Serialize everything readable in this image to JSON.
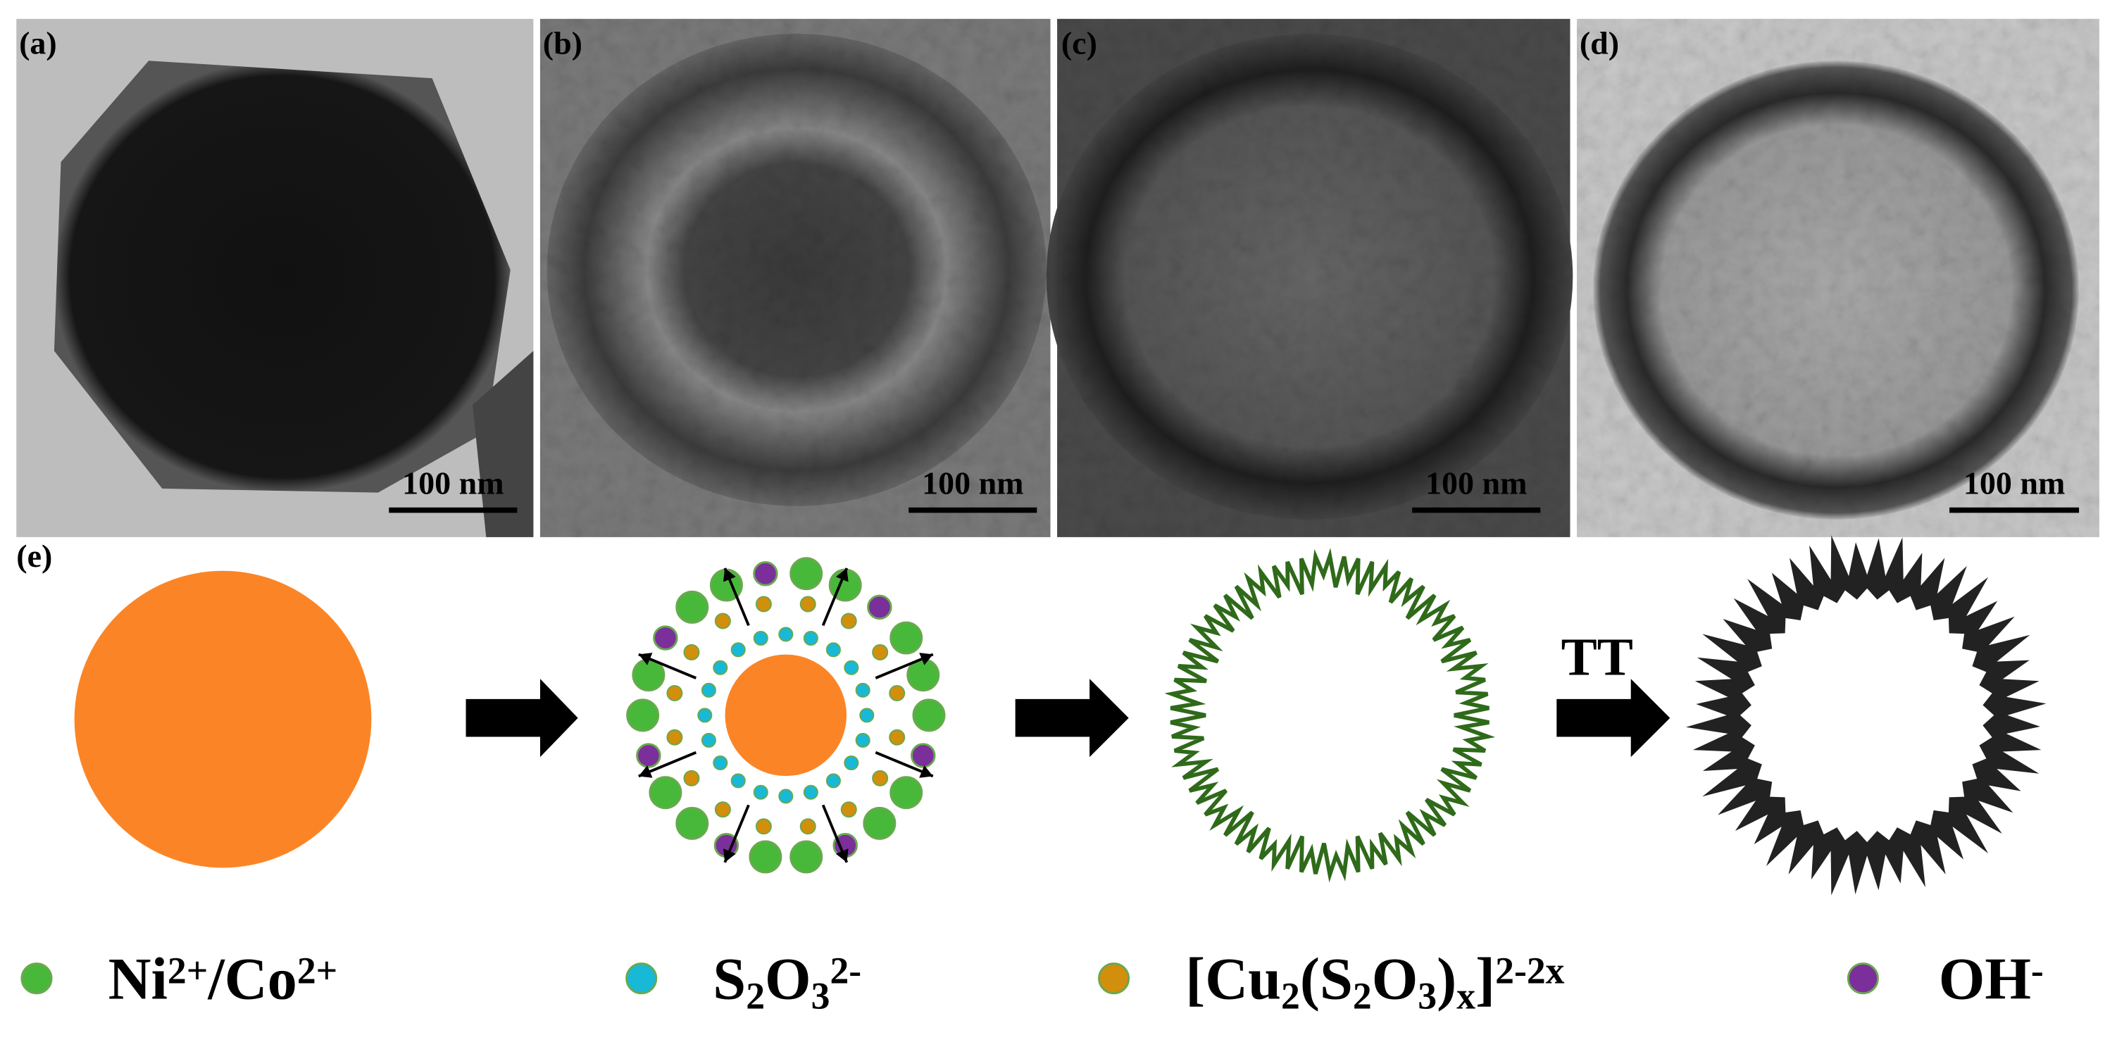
{
  "panels": [
    {
      "label": "(a)",
      "scale_bar": "100 nm"
    },
    {
      "label": "(b)",
      "scale_bar": "100 nm"
    },
    {
      "label": "(c)",
      "scale_bar": "100 nm"
    },
    {
      "label": "(d)",
      "scale_bar": "100 nm"
    }
  ],
  "schematic": {
    "label": "(e)",
    "step_label": "TT"
  },
  "legend": [
    {
      "parts": [
        {
          "text": "Ni"
        },
        {
          "text": "2+",
          "style": "sup"
        },
        {
          "text": "/Co"
        },
        {
          "text": "2+",
          "style": "sup"
        }
      ]
    },
    {
      "parts": [
        {
          "text": "S"
        },
        {
          "text": "2",
          "style": "sub"
        },
        {
          "text": "O"
        },
        {
          "text": "3",
          "style": "sub"
        },
        {
          "text": "2-",
          "style": "sup"
        }
      ]
    },
    {
      "parts": [
        {
          "text": "[Cu"
        },
        {
          "text": "2",
          "style": "sub"
        },
        {
          "text": "(S"
        },
        {
          "text": "2",
          "style": "sub"
        },
        {
          "text": "O"
        },
        {
          "text": "3",
          "style": "sub"
        },
        {
          "text": ")"
        },
        {
          "text": "x",
          "style": "sub"
        },
        {
          "text": "]"
        },
        {
          "text": "2-2x",
          "style": "sup"
        }
      ]
    },
    {
      "parts": [
        {
          "text": "OH"
        },
        {
          "text": "-",
          "style": "sup"
        }
      ]
    }
  ]
}
